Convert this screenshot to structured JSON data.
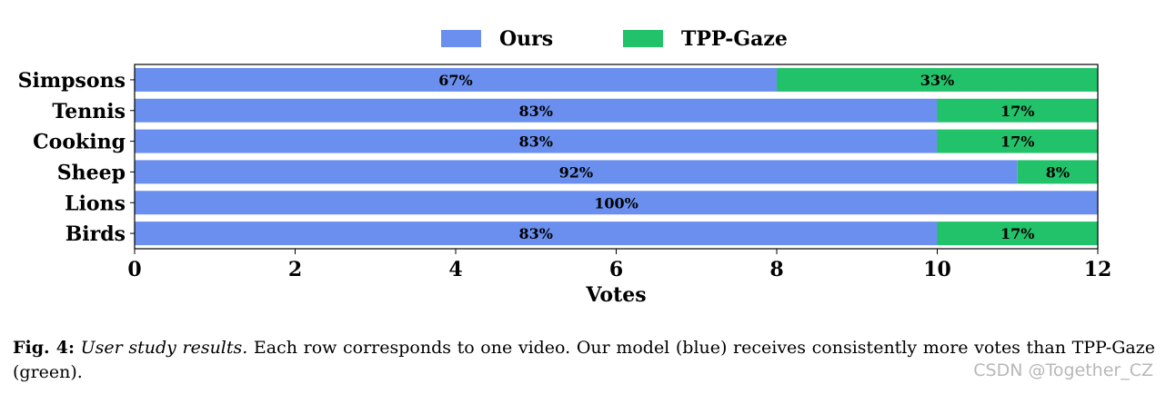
{
  "chart_data": {
    "type": "bar",
    "orientation": "horizontal",
    "stacked": true,
    "categories": [
      "Simpsons",
      "Tennis",
      "Cooking",
      "Sheep",
      "Lions",
      "Birds"
    ],
    "series": [
      {
        "name": "Ours",
        "color": "#6a8fee",
        "values": [
          8,
          10,
          10,
          11,
          12,
          10
        ],
        "labels": [
          "67%",
          "83%",
          "83%",
          "92%",
          "100%",
          "83%"
        ]
      },
      {
        "name": "TPP-Gaze",
        "color": "#22c26a",
        "values": [
          4,
          2,
          2,
          1,
          0,
          2
        ],
        "labels": [
          "33%",
          "17%",
          "17%",
          "8%",
          "",
          "17%"
        ]
      }
    ],
    "xlabel": "Votes",
    "xlim": [
      0,
      12
    ],
    "xticks": [
      0,
      2,
      4,
      6,
      8,
      10,
      12
    ],
    "legend": "top-center",
    "grid": false
  },
  "caption": {
    "fig": "Fig. 4:",
    "emph": "User study results.",
    "text": " Each row corresponds to one video. Our model (blue) receives consistently more votes than TPP-Gaze (green)."
  },
  "watermark": "CSDN @Together_CZ"
}
